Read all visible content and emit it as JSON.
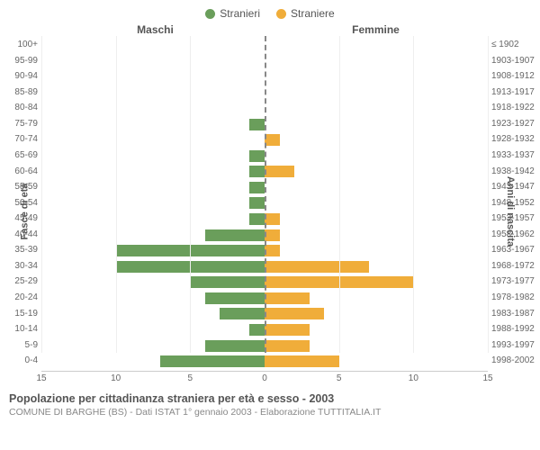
{
  "legend": {
    "male": {
      "label": "Stranieri",
      "color": "#6a9e5b"
    },
    "female": {
      "label": "Straniere",
      "color": "#f0ad3a"
    }
  },
  "headers": {
    "male": "Maschi",
    "female": "Femmine"
  },
  "y_axis_left": {
    "title": "Fasce di età"
  },
  "y_axis_right": {
    "title": "Anni di nascita"
  },
  "chart": {
    "type": "population-pyramid",
    "x_max": 15,
    "x_ticks": [
      15,
      10,
      5,
      0,
      5,
      10,
      15
    ],
    "bar_color_male": "#6a9e5b",
    "bar_color_female": "#f0ad3a",
    "grid_color": "#eeeeee",
    "center_line_color": "#888888",
    "background_color": "#ffffff",
    "label_fontsize": 10,
    "axis_title_fontsize": 11,
    "rows": [
      {
        "age": "100+",
        "birth": "≤ 1902",
        "m": 0,
        "f": 0
      },
      {
        "age": "95-99",
        "birth": "1903-1907",
        "m": 0,
        "f": 0
      },
      {
        "age": "90-94",
        "birth": "1908-1912",
        "m": 0,
        "f": 0
      },
      {
        "age": "85-89",
        "birth": "1913-1917",
        "m": 0,
        "f": 0
      },
      {
        "age": "80-84",
        "birth": "1918-1922",
        "m": 0,
        "f": 0
      },
      {
        "age": "75-79",
        "birth": "1923-1927",
        "m": 1,
        "f": 0
      },
      {
        "age": "70-74",
        "birth": "1928-1932",
        "m": 0,
        "f": 1
      },
      {
        "age": "65-69",
        "birth": "1933-1937",
        "m": 1,
        "f": 0
      },
      {
        "age": "60-64",
        "birth": "1938-1942",
        "m": 1,
        "f": 2
      },
      {
        "age": "55-59",
        "birth": "1943-1947",
        "m": 1,
        "f": 0
      },
      {
        "age": "50-54",
        "birth": "1948-1952",
        "m": 1,
        "f": 0
      },
      {
        "age": "45-49",
        "birth": "1953-1957",
        "m": 1,
        "f": 1
      },
      {
        "age": "40-44",
        "birth": "1958-1962",
        "m": 4,
        "f": 1
      },
      {
        "age": "35-39",
        "birth": "1963-1967",
        "m": 10,
        "f": 1
      },
      {
        "age": "30-34",
        "birth": "1968-1972",
        "m": 10,
        "f": 7
      },
      {
        "age": "25-29",
        "birth": "1973-1977",
        "m": 5,
        "f": 10
      },
      {
        "age": "20-24",
        "birth": "1978-1982",
        "m": 4,
        "f": 3
      },
      {
        "age": "15-19",
        "birth": "1983-1987",
        "m": 3,
        "f": 4
      },
      {
        "age": "10-14",
        "birth": "1988-1992",
        "m": 1,
        "f": 3
      },
      {
        "age": "5-9",
        "birth": "1993-1997",
        "m": 4,
        "f": 3
      },
      {
        "age": "0-4",
        "birth": "1998-2002",
        "m": 7,
        "f": 5
      }
    ]
  },
  "footer": {
    "title": "Popolazione per cittadinanza straniera per età e sesso - 2003",
    "subtitle": "COMUNE DI BARGHE (BS) - Dati ISTAT 1° gennaio 2003 - Elaborazione TUTTITALIA.IT"
  }
}
